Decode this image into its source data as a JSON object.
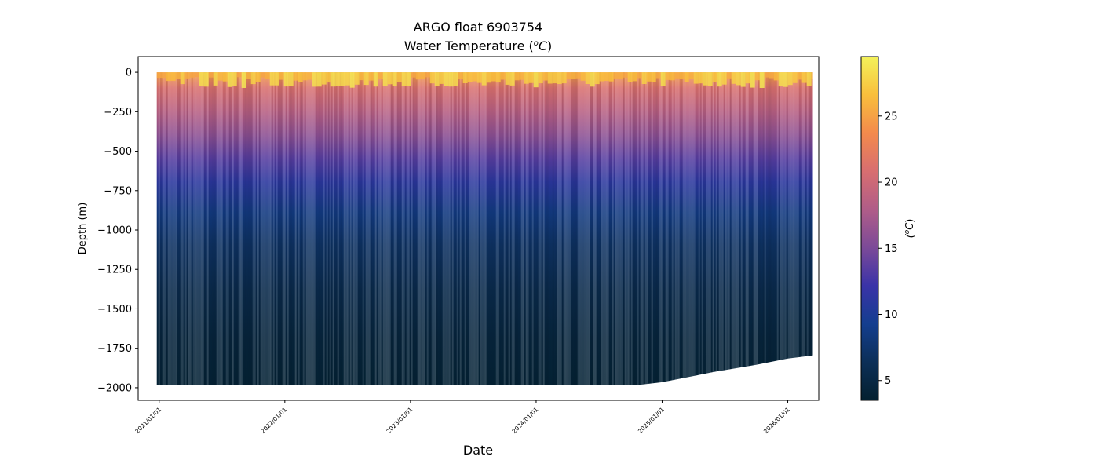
{
  "chart_data": {
    "type": "heatmap",
    "title_line1": "ARGO float 6903754",
    "title_line2": "Water Temperature (⁰C)",
    "title_prefix": "Water Temperature (",
    "title_unit_sup": "o",
    "title_unit_main": "C",
    "title_suffix": ")",
    "xlabel": "Date",
    "ylabel": "Depth (m)",
    "colorbar_label": "(⁰C)",
    "colorbar_label_sup": "o",
    "colorbar_label_main": "C",
    "x_range": [
      "2020-11-01",
      "2026-04-01"
    ],
    "x_data_range": [
      "2020-12-25",
      "2026-03-15"
    ],
    "y_range": [
      -2080,
      100
    ],
    "x_ticks": [
      "2021/01/01",
      "2022/01/01",
      "2023/01/01",
      "2024/01/01",
      "2025/01/01",
      "2026/01/01"
    ],
    "y_ticks": [
      0,
      -250,
      -500,
      -750,
      -1000,
      -1250,
      -1500,
      -1750,
      -2000
    ],
    "y_tick_labels": [
      "0",
      "−250",
      "−500",
      "−750",
      "−1000",
      "−1250",
      "−1500",
      "−1750",
      "−2000"
    ],
    "colorbar_range": [
      3.5,
      29.5
    ],
    "colorbar_ticks": [
      5,
      10,
      15,
      20,
      25
    ],
    "colormap": "thermal",
    "colormap_stops": [
      "#04202f",
      "#0c2f57",
      "#143e8f",
      "#3a33a8",
      "#7c4a98",
      "#b05d88",
      "#d86e70",
      "#f38a4c",
      "#f9bf3c",
      "#f3f25a"
    ],
    "profile_depth": [
      0,
      -100,
      -250,
      -400,
      -550,
      -700,
      -900,
      -1100,
      -1400,
      -1700,
      -2000
    ],
    "profile_temperature": [
      25,
      21,
      18.5,
      16,
      13.5,
      11,
      8.5,
      7,
      5.5,
      4.5,
      4
    ],
    "max_depth_profile": [
      {
        "date": "2020-12-25",
        "depth": -1985
      },
      {
        "date": "2024-10-15",
        "depth": -1985
      },
      {
        "date": "2025-01-01",
        "depth": -1965
      },
      {
        "date": "2025-06-01",
        "depth": -1900
      },
      {
        "date": "2025-10-01",
        "depth": -1855
      },
      {
        "date": "2026-01-01",
        "depth": -1815
      },
      {
        "date": "2026-03-15",
        "depth": -1795
      }
    ]
  }
}
